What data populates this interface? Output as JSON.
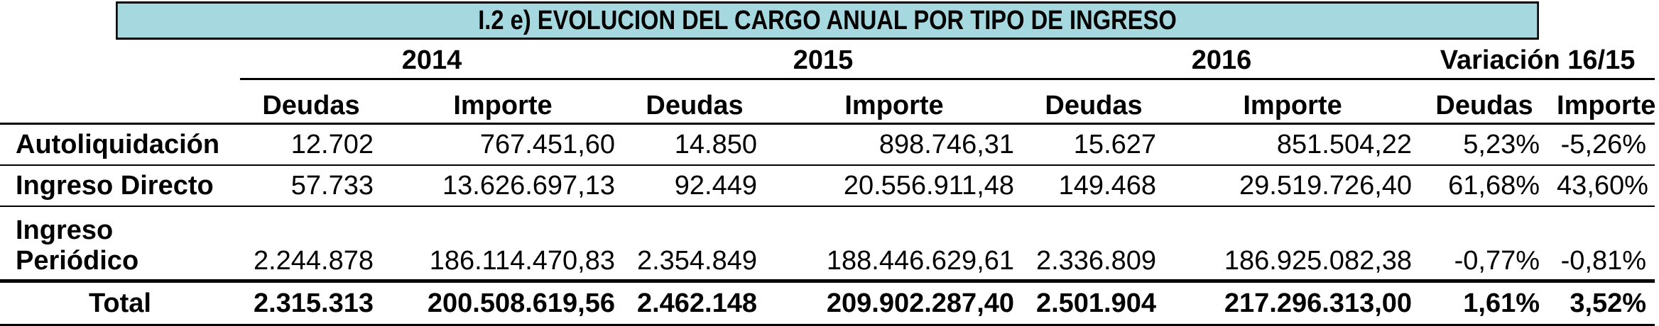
{
  "title": "I.2 e) EVOLUCION DEL CARGO ANUAL POR TIPO DE INGRESO",
  "years": [
    "2014",
    "2015",
    "2016",
    "Variación 16/15"
  ],
  "subheaders": [
    "Deudas",
    "Importe",
    "Deudas",
    "Importe",
    "Deudas",
    "Importe",
    "Deudas",
    "Importe"
  ],
  "rows": [
    {
      "label": "Autoliquidación",
      "values": [
        "12.702",
        "767.451,60",
        "14.850",
        "898.746,31",
        "15.627",
        "851.504,22",
        "5,23%",
        "-5,26%"
      ]
    },
    {
      "label": "Ingreso Directo",
      "values": [
        "57.733",
        "13.626.697,13",
        "92.449",
        "20.556.911,48",
        "149.468",
        "29.519.726,40",
        "61,68%",
        "43,60%"
      ]
    },
    {
      "label_line1": "Ingreso",
      "label_line2": "Periódico",
      "values": [
        "2.244.878",
        "186.114.470,83",
        "2.354.849",
        "188.446.629,61",
        "2.336.809",
        "186.925.082,38",
        "-0,77%",
        "-0,81%"
      ]
    }
  ],
  "total": {
    "label": "Total",
    "values": [
      "2.315.313",
      "200.508.619,56",
      "2.462.148",
      "209.902.287,40",
      "2.501.904",
      "217.296.313,00",
      "1,61%",
      "3,52%"
    ]
  }
}
